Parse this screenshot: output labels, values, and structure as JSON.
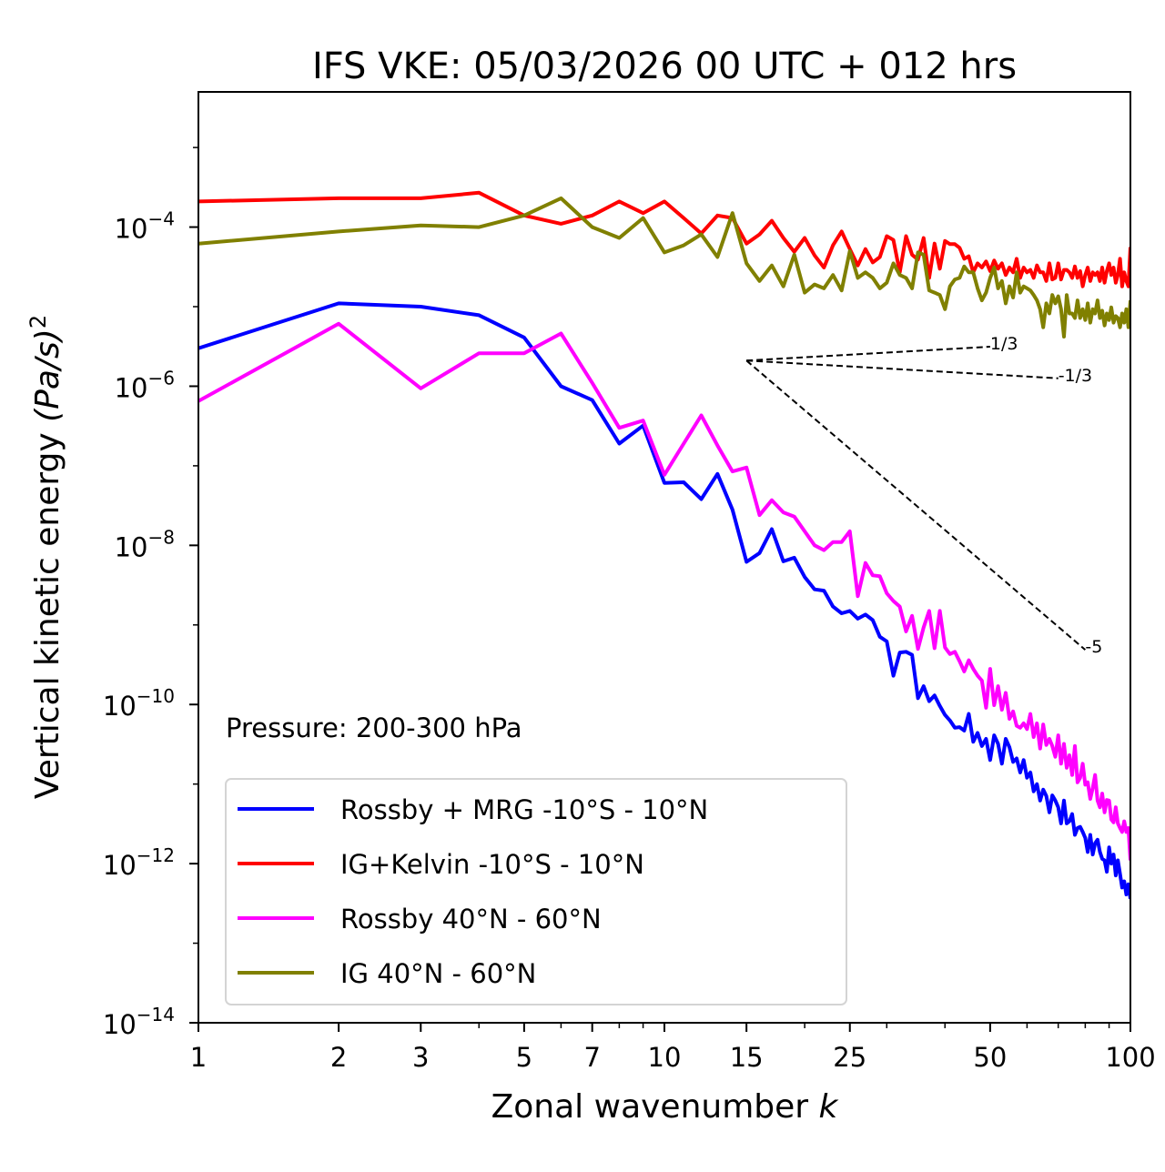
{
  "chart_data": {
    "type": "line",
    "title": "IFS VKE: 05/03/2026 00 UTC + 012 hrs",
    "xlabel": "Zonal wavenumber k",
    "ylabel": "Vertical kinetic energy (Pa/s)^2",
    "xlabel_parts": {
      "text": "Zonal wavenumber ",
      "italic": "k"
    },
    "ylabel_parts": {
      "text": "Vertical kinetic energy ",
      "italic": "(Pa/s)",
      "sup": "2"
    },
    "xscale": "log",
    "yscale": "log",
    "xlim": [
      1,
      100
    ],
    "ylim": [
      1e-14,
      0.005
    ],
    "x_ticks": [
      1,
      2,
      3,
      5,
      7,
      10,
      15,
      25,
      50,
      100
    ],
    "x_tick_labels": [
      "1",
      "2",
      "3",
      "5",
      "7",
      "10",
      "15",
      "25",
      "50",
      "100"
    ],
    "y_ticks": [
      {
        "value": 0.0001,
        "base": "10",
        "exp": "−4"
      },
      {
        "value": 1e-06,
        "base": "10",
        "exp": "−6"
      },
      {
        "value": 1e-08,
        "base": "10",
        "exp": "−8"
      },
      {
        "value": 1e-10,
        "base": "10",
        "exp": "−10"
      },
      {
        "value": 1e-12,
        "base": "10",
        "exp": "−12"
      },
      {
        "value": 1e-14,
        "base": "10",
        "exp": "−14"
      }
    ],
    "grid": false,
    "legend_position": "lower-left",
    "annotation": "Pressure: 200-300 hPa",
    "reference_lines": [
      {
        "slope": "1/3",
        "label": "1/3",
        "k_start": 15,
        "k_end": 50,
        "y_start": 2.1e-06
      },
      {
        "slope": "-1/3",
        "label": "-1/3",
        "k_start": 15,
        "k_end": 70,
        "y_start": 2.1e-06
      },
      {
        "slope": "-5",
        "label": "-5",
        "k_start": 15,
        "k_end": 80,
        "y_start": 2.1e-06
      }
    ],
    "x": [
      1,
      2,
      3,
      4,
      5,
      6,
      7,
      8,
      9,
      10,
      11,
      12,
      13,
      14,
      15,
      16,
      17,
      18,
      19,
      20,
      21,
      22,
      23,
      24,
      25,
      26,
      27,
      28,
      29,
      30,
      31,
      32,
      33,
      34,
      35,
      36,
      37,
      38,
      39,
      40,
      41,
      42,
      43,
      44,
      45,
      46,
      47,
      48,
      49,
      50,
      51,
      52,
      53,
      54,
      55,
      56,
      57,
      58,
      59,
      60,
      61,
      62,
      63,
      64,
      65,
      66,
      67,
      68,
      69,
      70,
      71,
      72,
      73,
      74,
      75,
      76,
      77,
      78,
      79,
      80,
      81,
      82,
      83,
      84,
      85,
      86,
      87,
      88,
      89,
      90,
      91,
      92,
      93,
      94,
      95,
      96,
      97,
      98,
      99,
      100
    ],
    "series": [
      {
        "name": "Rossby + MRG -10°S - 10°N",
        "color": "#0000ff",
        "values": [
          3e-06,
          1.1e-05,
          1e-05,
          7.8e-06,
          4.1e-06,
          1e-06,
          6.7e-07,
          1.9e-07,
          3.2e-07,
          6.1e-08,
          6.2e-08,
          3.8e-08,
          7.9e-08,
          2.8e-08,
          6.2e-09,
          8e-09,
          1.6e-08,
          6.3e-09,
          7e-09,
          4e-09,
          2.8e-09,
          2.7e-09,
          1.7e-09,
          1.4e-09,
          1.5e-09,
          1.2e-09,
          1.35e-09,
          1.15e-09,
          7.1e-10,
          6.2e-10,
          2.3e-10,
          4.5e-10,
          4.6e-10,
          4.2e-10,
          1.2e-10,
          1.7e-10,
          1.1e-10,
          1.3e-10,
          9.6e-11,
          7.4e-11,
          6.3e-11,
          5.1e-11,
          5.2e-11,
          4.7e-11,
          7.6e-11,
          3.4e-11,
          4.4e-11,
          3e-11,
          3.7e-11,
          2e-11,
          4.1e-11,
          3.2e-11,
          1.8e-11,
          3.7e-11,
          2.9e-11,
          1.9e-11,
          2.1e-11,
          1.4e-11,
          2e-11,
          1.2e-11,
          1.4e-11,
          8.1e-12,
          1e-11,
          6.2e-12,
          8.5e-12,
          7.1e-12,
          4.4e-12,
          7.2e-12,
          6.2e-12,
          5.1e-12,
          3.2e-12,
          6.2e-12,
          3.2e-12,
          3.4e-12,
          4.2e-12,
          2.3e-12,
          2.8e-12,
          2.9e-12,
          2.5e-12,
          2.1e-12,
          1.4e-12,
          2.3e-12,
          1.3e-12,
          1.8e-12,
          2e-12,
          1.4e-12,
          1.15e-12,
          1.1e-12,
          7.9e-13,
          1.6e-12,
          1e-12,
          1.3e-12,
          7.1e-13,
          1.1e-12,
          7.4e-13,
          5e-13,
          6e-13,
          4.1e-13,
          5.5e-13,
          3.6e-13
        ]
      },
      {
        "name": "IG+Kelvin -10°S - 10°N",
        "color": "#ff0000",
        "values": [
          0.00021,
          0.00023,
          0.00023,
          0.00027,
          0.00014,
          0.00011,
          0.00014,
          0.00021,
          0.00015,
          0.00021,
          0.00013,
          8.3e-05,
          0.00014,
          0.00013,
          6.2e-05,
          8.1e-05,
          0.00012,
          7.3e-05,
          4.9e-05,
          7.3e-05,
          4.4e-05,
          3.1e-05,
          5.9e-05,
          8.8e-05,
          5.3e-05,
          3.3e-05,
          5.3e-05,
          3.6e-05,
          4.2e-05,
          7.7e-05,
          6.9e-05,
          2.7e-05,
          7.7e-05,
          4.5e-05,
          3.9e-05,
          7.3e-05,
          2.3e-05,
          6.2e-05,
          3e-05,
          6.7e-05,
          6.1e-05,
          6.1e-05,
          5.5e-05,
          4e-05,
          4.3e-05,
          2.7e-05,
          3.5e-05,
          3.1e-05,
          3.7e-05,
          2.8e-05,
          3.8e-05,
          3e-05,
          3.5e-05,
          2.5e-05,
          3.1e-05,
          2.7e-05,
          4e-05,
          2.3e-05,
          3.1e-05,
          2.7e-05,
          2.9e-05,
          2.3e-05,
          3.3e-05,
          2.7e-05,
          2.7e-05,
          2.1e-05,
          3.5e-05,
          2.2e-05,
          2.3e-05,
          3.5e-05,
          2.2e-05,
          2.9e-05,
          2.9e-05,
          2.7e-05,
          2.3e-05,
          3.2e-05,
          2.3e-05,
          2.8e-05,
          1.8e-05,
          2.5e-05,
          3.1e-05,
          2.1e-05,
          2.7e-05,
          2.5e-05,
          2.7e-05,
          2.1e-05,
          3.1e-05,
          2e-05,
          2.8e-05,
          3.5e-05,
          2.5e-05,
          3.1e-05,
          2e-05,
          2.5e-05,
          4e-05,
          1.8e-05,
          2.7e-05,
          2.1e-05,
          1.8e-05,
          5.6e-05
        ]
      },
      {
        "name": "Rossby 40°N - 60°N",
        "color": "#ff00ff",
        "values": [
          6.5e-07,
          6.1e-06,
          9.4e-07,
          2.6e-06,
          2.6e-06,
          4.6e-06,
          1.1e-06,
          3e-07,
          3.7e-07,
          7.7e-08,
          1.9e-07,
          4.3e-07,
          1.8e-07,
          8.5e-08,
          9.5e-08,
          2.4e-08,
          3.7e-08,
          2.6e-08,
          2.3e-08,
          1.5e-08,
          1e-08,
          8.7e-09,
          1.1e-08,
          1.1e-08,
          1.5e-08,
          2.3e-09,
          6e-09,
          4.2e-09,
          4.1e-09,
          2.5e-09,
          2e-09,
          1.7e-09,
          8.3e-10,
          1.3e-09,
          5e-10,
          9.3e-10,
          1.5e-09,
          5.1e-10,
          1.5e-09,
          5.2e-10,
          4.3e-10,
          4.6e-10,
          3.5e-10,
          2.6e-10,
          3.6e-10,
          2.8e-10,
          2.3e-10,
          2e-10,
          9.1e-11,
          2.8e-10,
          9.8e-11,
          1.7e-10,
          8.6e-11,
          1.4e-10,
          6.6e-11,
          8.2e-11,
          5.4e-11,
          5.1e-11,
          5.8e-11,
          4.9e-11,
          7.6e-11,
          3.9e-11,
          5.8e-11,
          2.8e-11,
          5.6e-11,
          3.1e-11,
          3.7e-11,
          3e-11,
          2.2e-11,
          4.1e-11,
          1.8e-11,
          3.2e-11,
          1.6e-11,
          2.3e-11,
          1.3e-11,
          3e-11,
          1.05e-11,
          1.2e-11,
          1.8e-11,
          9.8e-12,
          1.05e-11,
          6.5e-12,
          8.9e-12,
          1.3e-11,
          6.2e-12,
          5.1e-12,
          7.6e-12,
          4.4e-12,
          6.3e-12,
          6.2e-12,
          3.6e-12,
          3.3e-12,
          5.1e-12,
          3.2e-12,
          2.8e-12,
          2.5e-12,
          3.4e-12,
          2.5e-12,
          2.8e-12,
          1.1e-12
        ]
      },
      {
        "name": "IG 40°N - 60°N",
        "color": "#808000",
        "values": [
          6.2e-05,
          8.8e-05,
          0.000105,
          0.0001,
          0.00014,
          0.00023,
          0.0001,
          7.3e-05,
          0.00013,
          4.8e-05,
          5.9e-05,
          8.1e-05,
          4.2e-05,
          0.00015,
          3.5e-05,
          2.1e-05,
          3.3e-05,
          1.8e-05,
          4.5e-05,
          1.5e-05,
          1.9e-05,
          1.7e-05,
          2.5e-05,
          1.6e-05,
          5e-05,
          2.3e-05,
          2.7e-05,
          2.3e-05,
          1.7e-05,
          2e-05,
          3.5e-05,
          2.5e-05,
          2.3e-05,
          1.7e-05,
          4.8e-05,
          4.5e-05,
          1.6e-05,
          1.5e-05,
          1.4e-05,
          9.3e-06,
          1.8e-05,
          2.2e-05,
          2.3e-05,
          3.2e-05,
          2.7e-05,
          2.7e-05,
          1.7e-05,
          1.2e-05,
          1.5e-05,
          2.3e-05,
          3.1e-05,
          1.7e-05,
          2.1e-05,
          1.1e-05,
          1.8e-05,
          1.3e-05,
          2.7e-05,
          1.5e-05,
          1.8e-05,
          1.7e-05,
          1.6e-05,
          1.4e-05,
          1.2e-05,
          9.3e-06,
          5.5e-06,
          1.1e-05,
          8.2e-06,
          1.4e-05,
          1.1e-05,
          1.35e-05,
          9.3e-06,
          4.2e-06,
          1.4e-05,
          8.2e-06,
          8.2e-06,
          7.2e-06,
          1.2e-05,
          7.2e-06,
          9.3e-06,
          6.8e-06,
          1.1e-05,
          6.3e-06,
          9.3e-06,
          8.2e-06,
          1.2e-05,
          7.2e-06,
          8.9e-06,
          5.8e-06,
          8.2e-06,
          6.8e-06,
          9.8e-06,
          6.3e-06,
          7.6e-06,
          7.2e-06,
          5.5e-06,
          8.2e-06,
          6.3e-06,
          9.3e-06,
          5.5e-06,
          1.2e-05
        ]
      }
    ]
  }
}
